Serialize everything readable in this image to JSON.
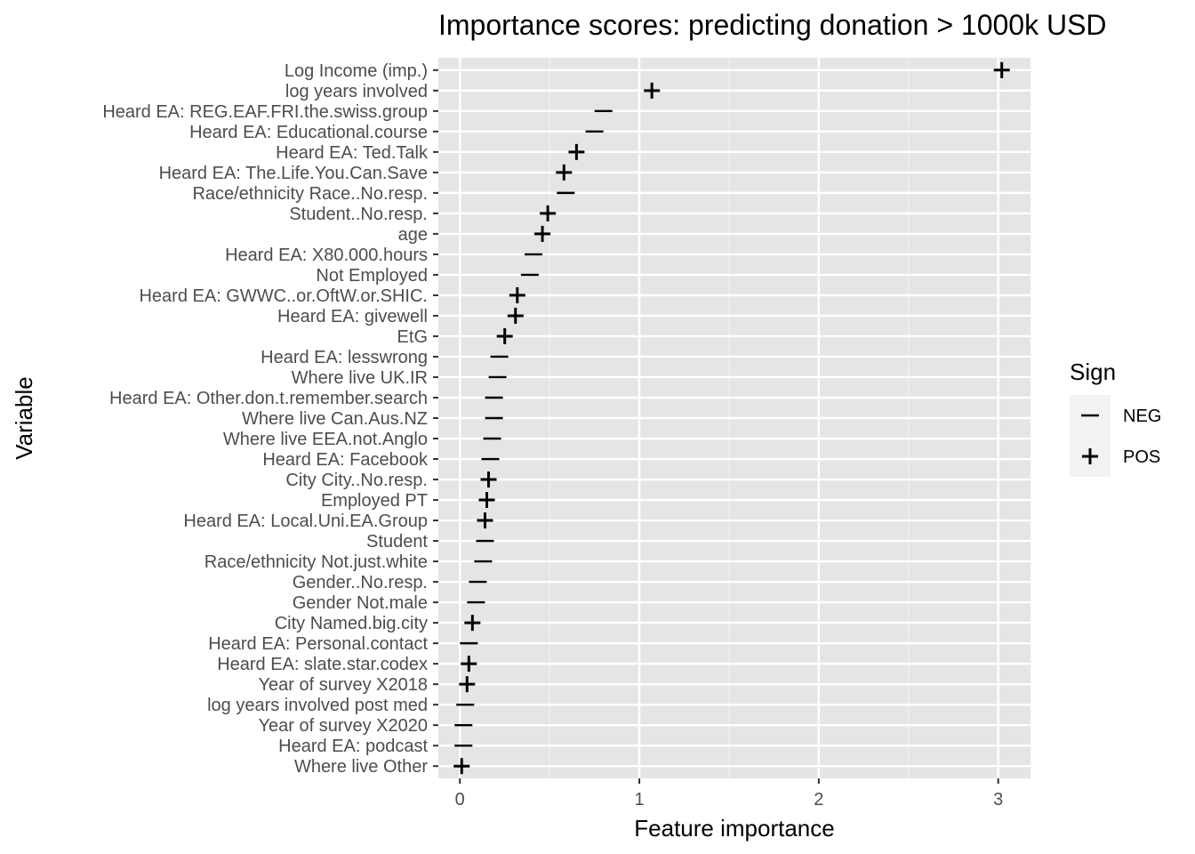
{
  "chart_data": {
    "type": "scatter",
    "title": "Importance scores: predicting donation > 1000k USD",
    "xlabel": "Feature importance",
    "ylabel": "Variable",
    "xlim": [
      -0.12,
      3.18
    ],
    "xticks": [
      0,
      1,
      2,
      3
    ],
    "grid": true,
    "legend": {
      "title": "Sign",
      "position": "right",
      "entries": [
        {
          "label": "NEG",
          "symbol": "–"
        },
        {
          "label": "POS",
          "symbol": "+"
        }
      ]
    },
    "points": [
      {
        "variable": "Log Income (imp.)",
        "importance": 3.02,
        "sign": "POS"
      },
      {
        "variable": "log years involved",
        "importance": 1.07,
        "sign": "POS"
      },
      {
        "variable": "Heard EA: REG.EAF.FRI.the.swiss.group",
        "importance": 0.8,
        "sign": "NEG"
      },
      {
        "variable": "Heard EA: Educational.course",
        "importance": 0.75,
        "sign": "NEG"
      },
      {
        "variable": "Heard EA: Ted.Talk",
        "importance": 0.65,
        "sign": "POS"
      },
      {
        "variable": "Heard EA: The.Life.You.Can.Save",
        "importance": 0.58,
        "sign": "POS"
      },
      {
        "variable": "Race/ethnicity Race..No.resp.",
        "importance": 0.59,
        "sign": "NEG"
      },
      {
        "variable": "Student..No.resp.",
        "importance": 0.49,
        "sign": "POS"
      },
      {
        "variable": "age",
        "importance": 0.46,
        "sign": "POS"
      },
      {
        "variable": "Heard EA: X80.000.hours",
        "importance": 0.41,
        "sign": "NEG"
      },
      {
        "variable": "Not Employed",
        "importance": 0.39,
        "sign": "NEG"
      },
      {
        "variable": "Heard EA: GWWC..or.OftW.or.SHIC.",
        "importance": 0.32,
        "sign": "POS"
      },
      {
        "variable": "Heard EA: givewell",
        "importance": 0.31,
        "sign": "POS"
      },
      {
        "variable": "EtG",
        "importance": 0.25,
        "sign": "POS"
      },
      {
        "variable": "Heard EA: lesswrong",
        "importance": 0.22,
        "sign": "NEG"
      },
      {
        "variable": "Where live UK.IR",
        "importance": 0.21,
        "sign": "NEG"
      },
      {
        "variable": "Heard EA: Other.don.t.remember.search",
        "importance": 0.19,
        "sign": "NEG"
      },
      {
        "variable": "Where live Can.Aus.NZ",
        "importance": 0.19,
        "sign": "NEG"
      },
      {
        "variable": "Where live EEA.not.Anglo",
        "importance": 0.18,
        "sign": "NEG"
      },
      {
        "variable": "Heard EA: Facebook",
        "importance": 0.17,
        "sign": "NEG"
      },
      {
        "variable": "City City..No.resp.",
        "importance": 0.16,
        "sign": "POS"
      },
      {
        "variable": "Employed PT",
        "importance": 0.15,
        "sign": "POS"
      },
      {
        "variable": "Heard EA: Local.Uni.EA.Group",
        "importance": 0.14,
        "sign": "POS"
      },
      {
        "variable": "Student",
        "importance": 0.14,
        "sign": "NEG"
      },
      {
        "variable": "Race/ethnicity Not.just.white",
        "importance": 0.13,
        "sign": "NEG"
      },
      {
        "variable": "Gender..No.resp.",
        "importance": 0.1,
        "sign": "NEG"
      },
      {
        "variable": "Gender Not.male",
        "importance": 0.09,
        "sign": "NEG"
      },
      {
        "variable": "City Named.big.city",
        "importance": 0.07,
        "sign": "POS"
      },
      {
        "variable": "Heard EA: Personal.contact",
        "importance": 0.05,
        "sign": "NEG"
      },
      {
        "variable": "Heard EA: slate.star.codex",
        "importance": 0.05,
        "sign": "POS"
      },
      {
        "variable": "Year of survey X2018",
        "importance": 0.04,
        "sign": "POS"
      },
      {
        "variable": "log years involved post med",
        "importance": 0.03,
        "sign": "NEG"
      },
      {
        "variable": "Year of survey X2020",
        "importance": 0.02,
        "sign": "NEG"
      },
      {
        "variable": "Heard EA: podcast",
        "importance": 0.02,
        "sign": "NEG"
      },
      {
        "variable": "Where live Other",
        "importance": 0.01,
        "sign": "POS"
      }
    ]
  }
}
